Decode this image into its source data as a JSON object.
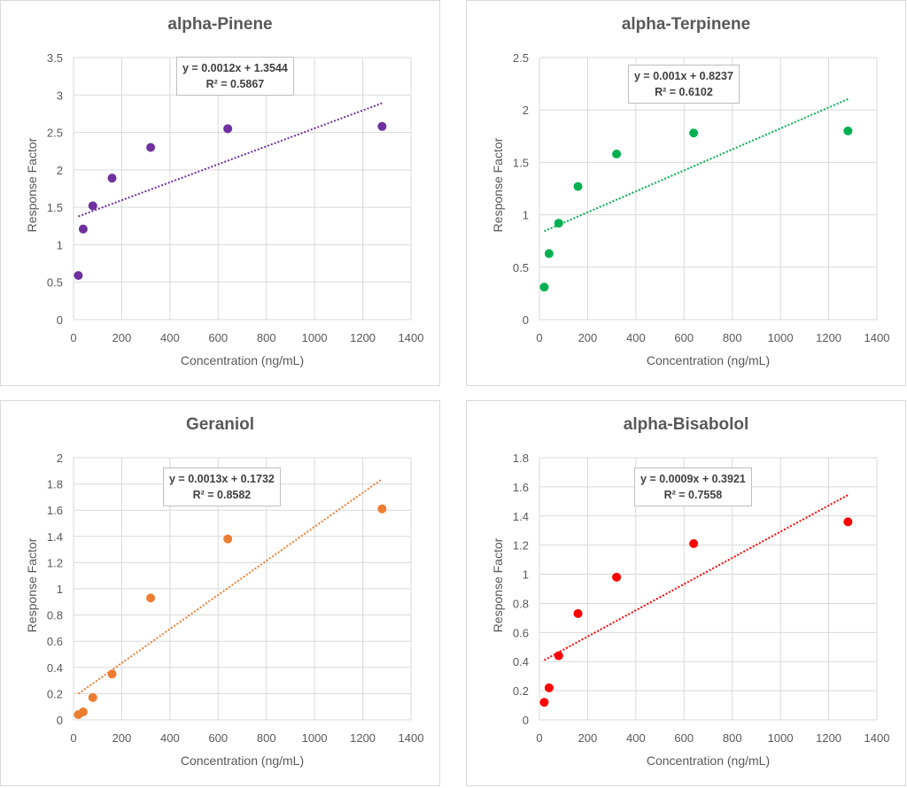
{
  "chart_data": [
    {
      "type": "scatter",
      "title": "alpha-Pinene",
      "xlabel": "Concentration (ng/mL)",
      "ylabel": "Response Factor",
      "xlim": [
        0,
        1400
      ],
      "xstep": 200,
      "ylim": [
        0,
        3.5
      ],
      "ystep": 0.5,
      "grid": true,
      "color": "#7030a0",
      "x": [
        20,
        40,
        80,
        160,
        320,
        640,
        1280
      ],
      "y": [
        0.59,
        1.21,
        1.52,
        1.89,
        2.3,
        2.55,
        2.58
      ],
      "trendline": {
        "type": "linear",
        "slope": 0.0012,
        "intercept": 1.3544,
        "equation": "y = 0.0012x + 1.3544",
        "r2": "R² = 0.5867"
      }
    },
    {
      "type": "scatter",
      "title": "alpha-Terpinene",
      "xlabel": "Concentration (ng/mL)",
      "ylabel": "Response Factor",
      "xlim": [
        0,
        1400
      ],
      "xstep": 200,
      "ylim": [
        0,
        2.5
      ],
      "ystep": 0.5,
      "grid": true,
      "color": "#00b050",
      "x": [
        20,
        40,
        80,
        160,
        320,
        640,
        1280
      ],
      "y": [
        0.31,
        0.63,
        0.92,
        1.27,
        1.58,
        1.78,
        1.8
      ],
      "trendline": {
        "type": "linear",
        "slope": 0.001,
        "intercept": 0.8237,
        "equation": "y = 0.001x + 0.8237",
        "r2": "R² = 0.6102"
      }
    },
    {
      "type": "scatter",
      "title": "Geraniol",
      "xlabel": "Concentration (ng/mL)",
      "ylabel": "Response Factor",
      "xlim": [
        0,
        1400
      ],
      "xstep": 200,
      "ylim": [
        0,
        2
      ],
      "ystep": 0.2,
      "grid": true,
      "color": "#ed7d31",
      "x": [
        20,
        40,
        80,
        160,
        320,
        640,
        1280
      ],
      "y": [
        0.04,
        0.06,
        0.17,
        0.35,
        0.93,
        1.38,
        1.61
      ],
      "trendline": {
        "type": "linear",
        "slope": 0.0013,
        "intercept": 0.1732,
        "equation": "y = 0.0013x + 0.1732",
        "r2": "R² = 0.8582"
      }
    },
    {
      "type": "scatter",
      "title": "alpha-Bisabolol",
      "xlabel": "Concentration (ng/mL)",
      "ylabel": "Response Factor",
      "xlim": [
        0,
        1400
      ],
      "xstep": 200,
      "ylim": [
        0,
        1.8
      ],
      "ystep": 0.2,
      "grid": true,
      "color": "#ff0000",
      "x": [
        20,
        40,
        80,
        160,
        320,
        640,
        1280
      ],
      "y": [
        0.12,
        0.22,
        0.44,
        0.73,
        0.98,
        1.21,
        1.36
      ],
      "trendline": {
        "type": "linear",
        "slope": 0.0009,
        "intercept": 0.3921,
        "equation": "y = 0.0009x + 0.3921",
        "r2": "R² = 0.7558"
      }
    }
  ]
}
